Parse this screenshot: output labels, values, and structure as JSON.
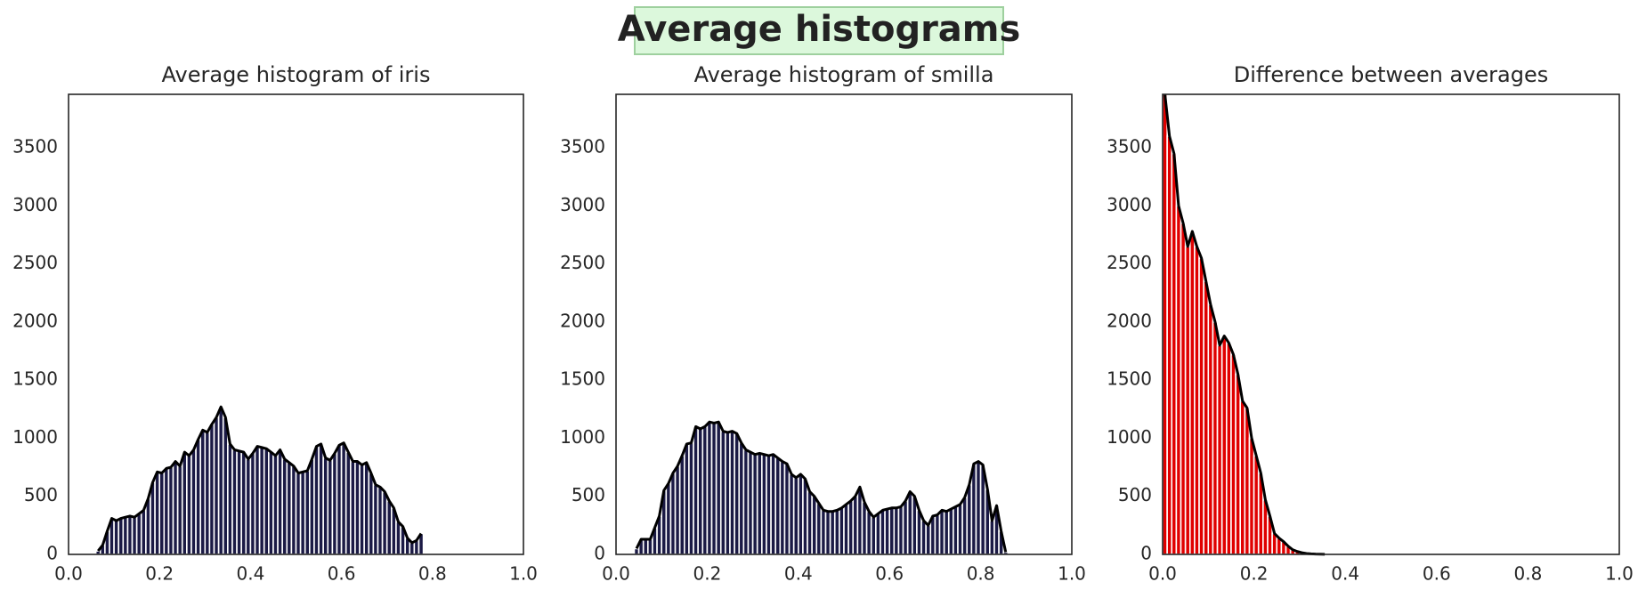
{
  "title": "Average histograms",
  "chart_data": [
    {
      "type": "histogram",
      "title": "Average histogram of iris",
      "color": "#1b1a45",
      "outline_color": "#000000",
      "bins": [
        0.06,
        0.07,
        0.08,
        0.09,
        0.1,
        0.11,
        0.12,
        0.13,
        0.14,
        0.15,
        0.16,
        0.17,
        0.18,
        0.19,
        0.2,
        0.21,
        0.22,
        0.23,
        0.24,
        0.25,
        0.26,
        0.27,
        0.28,
        0.29,
        0.3,
        0.31,
        0.32,
        0.33,
        0.34,
        0.35,
        0.36,
        0.37,
        0.38,
        0.39,
        0.4,
        0.41,
        0.42,
        0.43,
        0.44,
        0.45,
        0.46,
        0.47,
        0.48,
        0.49,
        0.5,
        0.51,
        0.52,
        0.53,
        0.54,
        0.55,
        0.56,
        0.57,
        0.58,
        0.59,
        0.6,
        0.61,
        0.62,
        0.63,
        0.64,
        0.65,
        0.66,
        0.67,
        0.68,
        0.69,
        0.7,
        0.71,
        0.72,
        0.73,
        0.74,
        0.75,
        0.76,
        0.77,
        0.78
      ],
      "values": [
        30,
        80,
        200,
        310,
        290,
        310,
        320,
        330,
        320,
        350,
        380,
        480,
        620,
        710,
        700,
        740,
        750,
        800,
        760,
        880,
        850,
        900,
        990,
        1070,
        1050,
        1120,
        1180,
        1270,
        1180,
        950,
        900,
        890,
        880,
        820,
        870,
        930,
        920,
        910,
        880,
        850,
        900,
        820,
        790,
        760,
        700,
        710,
        720,
        820,
        930,
        950,
        830,
        810,
        870,
        940,
        960,
        880,
        800,
        800,
        770,
        790,
        700,
        600,
        580,
        540,
        460,
        400,
        280,
        240,
        140,
        100,
        120,
        180
      ],
      "xlim": [
        0,
        1
      ],
      "xticks": [
        {
          "value": 0,
          "label": "0.0"
        },
        0.2,
        0.4,
        0.6,
        0.8,
        {
          "value": 1,
          "label": "1.0"
        }
      ],
      "ylim": [
        0,
        3960
      ],
      "yticks": [
        0,
        500,
        1000,
        1500,
        2000,
        2500,
        3000,
        3500
      ],
      "grid": false
    },
    {
      "type": "histogram",
      "title": "Average histogram of smilla",
      "color": "#1b1a45",
      "outline_color": "#000000",
      "bins": [
        0.04,
        0.05,
        0.06,
        0.07,
        0.08,
        0.09,
        0.1,
        0.11,
        0.12,
        0.13,
        0.14,
        0.15,
        0.16,
        0.17,
        0.18,
        0.19,
        0.2,
        0.21,
        0.22,
        0.23,
        0.24,
        0.25,
        0.26,
        0.27,
        0.28,
        0.29,
        0.3,
        0.31,
        0.32,
        0.33,
        0.34,
        0.35,
        0.36,
        0.37,
        0.38,
        0.39,
        0.4,
        0.41,
        0.42,
        0.43,
        0.44,
        0.45,
        0.46,
        0.47,
        0.48,
        0.49,
        0.5,
        0.51,
        0.52,
        0.53,
        0.54,
        0.55,
        0.56,
        0.57,
        0.58,
        0.59,
        0.6,
        0.61,
        0.62,
        0.63,
        0.64,
        0.65,
        0.66,
        0.67,
        0.68,
        0.69,
        0.7,
        0.71,
        0.72,
        0.73,
        0.74,
        0.75,
        0.76,
        0.77,
        0.78,
        0.79,
        0.8,
        0.81,
        0.82,
        0.83,
        0.84,
        0.85,
        0.86
      ],
      "values": [
        50,
        130,
        130,
        130,
        230,
        330,
        550,
        610,
        700,
        760,
        850,
        950,
        960,
        1100,
        1080,
        1100,
        1140,
        1130,
        1140,
        1060,
        1050,
        1060,
        1040,
        960,
        900,
        880,
        860,
        870,
        860,
        850,
        860,
        830,
        800,
        780,
        690,
        660,
        690,
        650,
        540,
        500,
        440,
        380,
        370,
        370,
        380,
        400,
        430,
        460,
        500,
        580,
        450,
        370,
        320,
        350,
        380,
        390,
        400,
        400,
        410,
        460,
        540,
        500,
        380,
        290,
        250,
        330,
        340,
        380,
        370,
        390,
        410,
        430,
        490,
        600,
        780,
        800,
        770,
        560,
        290,
        420,
        200,
        20
      ],
      "xlim": [
        0,
        1
      ],
      "xticks": [
        {
          "value": 0,
          "label": "0.0"
        },
        0.2,
        0.4,
        0.6,
        0.8,
        {
          "value": 1,
          "label": "1.0"
        }
      ],
      "ylim": [
        0,
        3960
      ],
      "yticks": [
        0,
        500,
        1000,
        1500,
        2000,
        2500,
        3000,
        3500
      ],
      "grid": false
    },
    {
      "type": "histogram",
      "title": "Difference between averages",
      "color": "#e00000",
      "outline_color": "#000000",
      "bins": [
        0.0,
        0.01,
        0.02,
        0.03,
        0.04,
        0.05,
        0.06,
        0.07,
        0.08,
        0.09,
        0.1,
        0.11,
        0.12,
        0.13,
        0.14,
        0.15,
        0.16,
        0.17,
        0.18,
        0.19,
        0.2,
        0.21,
        0.22,
        0.23,
        0.24,
        0.25,
        0.26,
        0.27,
        0.28,
        0.29,
        0.3,
        0.31,
        0.32,
        0.33,
        0.34,
        0.35,
        0.36
      ],
      "values": [
        3960,
        3600,
        3450,
        3000,
        2850,
        2650,
        2780,
        2650,
        2550,
        2350,
        2150,
        2000,
        1800,
        1880,
        1820,
        1720,
        1550,
        1320,
        1260,
        1000,
        850,
        700,
        470,
        330,
        180,
        140,
        110,
        70,
        40,
        25,
        15,
        8,
        5,
        3,
        2,
        1
      ],
      "xlim": [
        0,
        1
      ],
      "xticks": [
        {
          "value": 0,
          "label": "0.0"
        },
        0.2,
        0.4,
        0.6,
        0.8,
        {
          "value": 1,
          "label": "1.0"
        }
      ],
      "ylim": [
        0,
        3960
      ],
      "yticks": [
        0,
        500,
        1000,
        1500,
        2000,
        2500,
        3000,
        3500
      ],
      "grid": false
    }
  ]
}
